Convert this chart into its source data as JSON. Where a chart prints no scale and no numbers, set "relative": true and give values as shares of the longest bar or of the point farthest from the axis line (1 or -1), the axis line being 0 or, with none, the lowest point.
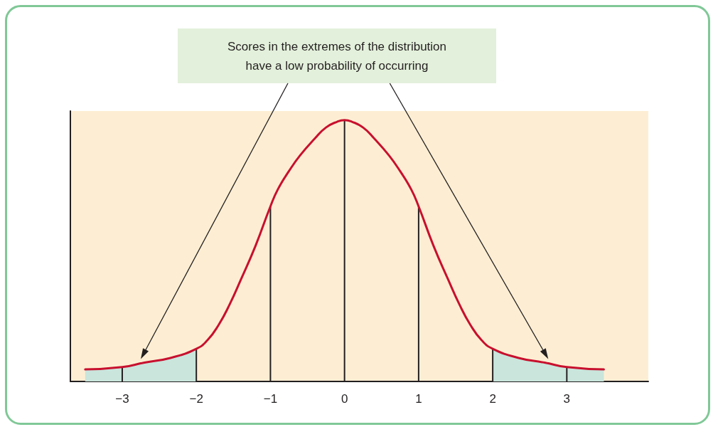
{
  "chart_data": {
    "type": "line",
    "series": [
      {
        "type": "area",
        "color": "#c9e5dc",
        "x": [
          -3.5,
          -3,
          -2.7,
          -2.35,
          -2
        ],
        "values": [
          0.046,
          0.055,
          0.072,
          0.09,
          0.125
        ]
      },
      {
        "type": "area",
        "color": "#c9e5dc",
        "x": [
          2,
          2.35,
          2.7,
          3,
          3.5
        ],
        "values": [
          0.125,
          0.09,
          0.072,
          0.055,
          0.046
        ]
      },
      {
        "type": "bar",
        "color": "#231f20",
        "x": [
          -3,
          -2,
          -1,
          0,
          1,
          2,
          3
        ],
        "values": [
          0.055,
          0.125,
          0.67,
          1,
          0.67,
          0.125,
          0.055
        ]
      },
      {
        "color": "#c8102e",
        "x": [
          -3.5,
          -3,
          -2.7,
          -2.35,
          -2,
          -1.85,
          -1.7,
          -1.55,
          -1.4,
          -1.2,
          -1,
          -0.9,
          -0.75,
          -0.6,
          -0.4,
          -0.25,
          -0.1,
          0,
          0.1,
          0.25,
          0.4,
          0.6,
          0.75,
          0.9,
          1,
          1.2,
          1.4,
          1.55,
          1.7,
          1.85,
          2,
          2.35,
          2.7,
          3,
          3.5
        ],
        "values": [
          0.046,
          0.055,
          0.072,
          0.09,
          0.125,
          0.158,
          0.216,
          0.295,
          0.389,
          0.52,
          0.67,
          0.735,
          0.805,
          0.865,
          0.93,
          0.972,
          0.994,
          1,
          0.994,
          0.972,
          0.93,
          0.865,
          0.805,
          0.735,
          0.67,
          0.52,
          0.389,
          0.295,
          0.216,
          0.158,
          0.125,
          0.09,
          0.072,
          0.055,
          0.046
        ]
      }
    ],
    "relative": true,
    "marker": "none",
    "grid": false,
    "xlim": [
      -3.7,
      4.1
    ],
    "xticks": [
      {
        "value": -3,
        "label": "−3"
      },
      {
        "value": -2,
        "label": "−2"
      },
      {
        "value": -1,
        "label": "−1"
      },
      0,
      1,
      2,
      3
    ],
    "annotations": [
      "Scores in the extremes of the distribution have a low probability of occurring"
    ]
  }
}
